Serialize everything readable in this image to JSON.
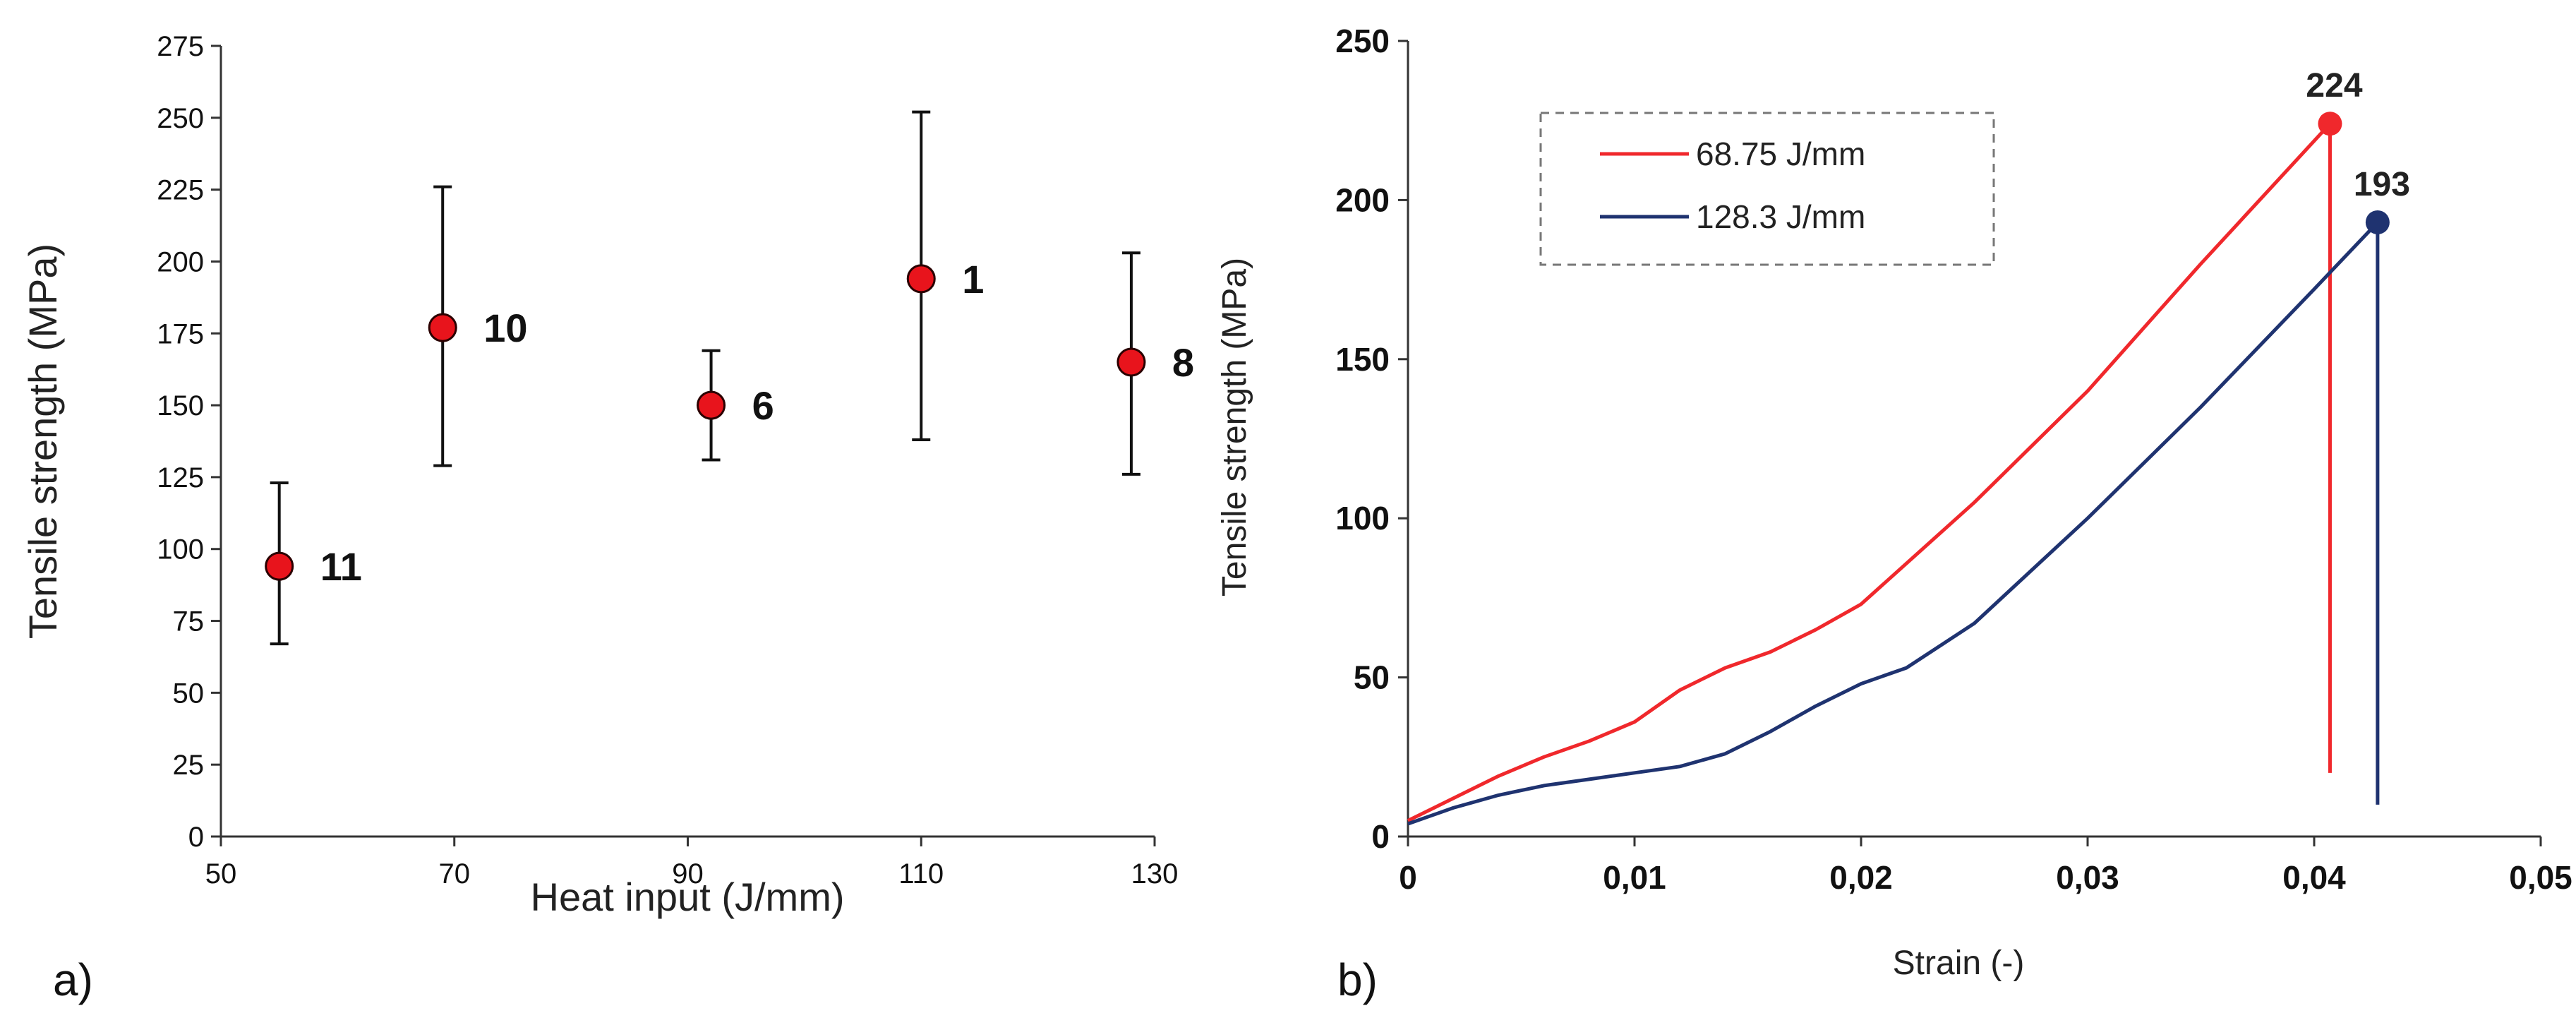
{
  "chart_data": [
    {
      "type": "scatter",
      "panel_label": "a)",
      "xlabel": "Heat input  (J/mm)",
      "ylabel": "Tensile strength (MPa)",
      "xlim": [
        50,
        130
      ],
      "ylim": [
        0,
        275
      ],
      "x_ticks": [
        "50",
        "70",
        "90",
        "110",
        "130"
      ],
      "y_ticks": [
        "0",
        "25",
        "50",
        "75",
        "100",
        "125",
        "150",
        "175",
        "200",
        "225",
        "250",
        "275"
      ],
      "grid": false,
      "marker_color": "#e8141c",
      "points": [
        {
          "x": 55,
          "y": 94,
          "err_low": 67,
          "err_high": 123,
          "label": "11"
        },
        {
          "x": 69,
          "y": 177,
          "err_low": 129,
          "err_high": 226,
          "label": "10"
        },
        {
          "x": 92,
          "y": 150,
          "err_low": 131,
          "err_high": 169,
          "label": "6"
        },
        {
          "x": 110,
          "y": 194,
          "err_low": 138,
          "err_high": 252,
          "label": "1"
        },
        {
          "x": 128,
          "y": 165,
          "err_low": 126,
          "err_high": 203,
          "label": "8"
        }
      ]
    },
    {
      "type": "line",
      "panel_label": "b)",
      "xlabel": "Strain (-)",
      "ylabel": "Tensile strength (MPa)",
      "xlim": [
        0,
        0.05
      ],
      "ylim": [
        0,
        250
      ],
      "x_ticks": [
        "0",
        "0,01",
        "0,02",
        "0,03",
        "0,04",
        "0,05"
      ],
      "y_ticks": [
        "0",
        "50",
        "100",
        "150",
        "200",
        "250"
      ],
      "grid": false,
      "legend": {
        "position": "top-left"
      },
      "series": [
        {
          "name": "68.75 J/mm",
          "color": "#f0282c",
          "points": [
            [
              0,
              5
            ],
            [
              0.002,
              12
            ],
            [
              0.004,
              19
            ],
            [
              0.006,
              25
            ],
            [
              0.008,
              30
            ],
            [
              0.01,
              36
            ],
            [
              0.012,
              46
            ],
            [
              0.014,
              53
            ],
            [
              0.016,
              58
            ],
            [
              0.018,
              65
            ],
            [
              0.02,
              73
            ],
            [
              0.025,
              105
            ],
            [
              0.03,
              140
            ],
            [
              0.035,
              180
            ],
            [
              0.0407,
              224
            ]
          ],
          "drop_to": 20,
          "peak_label": "224"
        },
        {
          "name": "128.3 J/mm",
          "color": "#1f3370",
          "points": [
            [
              0,
              4
            ],
            [
              0.002,
              9
            ],
            [
              0.004,
              13
            ],
            [
              0.006,
              16
            ],
            [
              0.008,
              18
            ],
            [
              0.01,
              20
            ],
            [
              0.012,
              22
            ],
            [
              0.014,
              26
            ],
            [
              0.016,
              33
            ],
            [
              0.018,
              41
            ],
            [
              0.02,
              48
            ],
            [
              0.022,
              53
            ],
            [
              0.025,
              67
            ],
            [
              0.03,
              100
            ],
            [
              0.035,
              135
            ],
            [
              0.04,
              172
            ],
            [
              0.0428,
              193
            ]
          ],
          "drop_to": 10,
          "peak_label": "193"
        }
      ]
    }
  ]
}
